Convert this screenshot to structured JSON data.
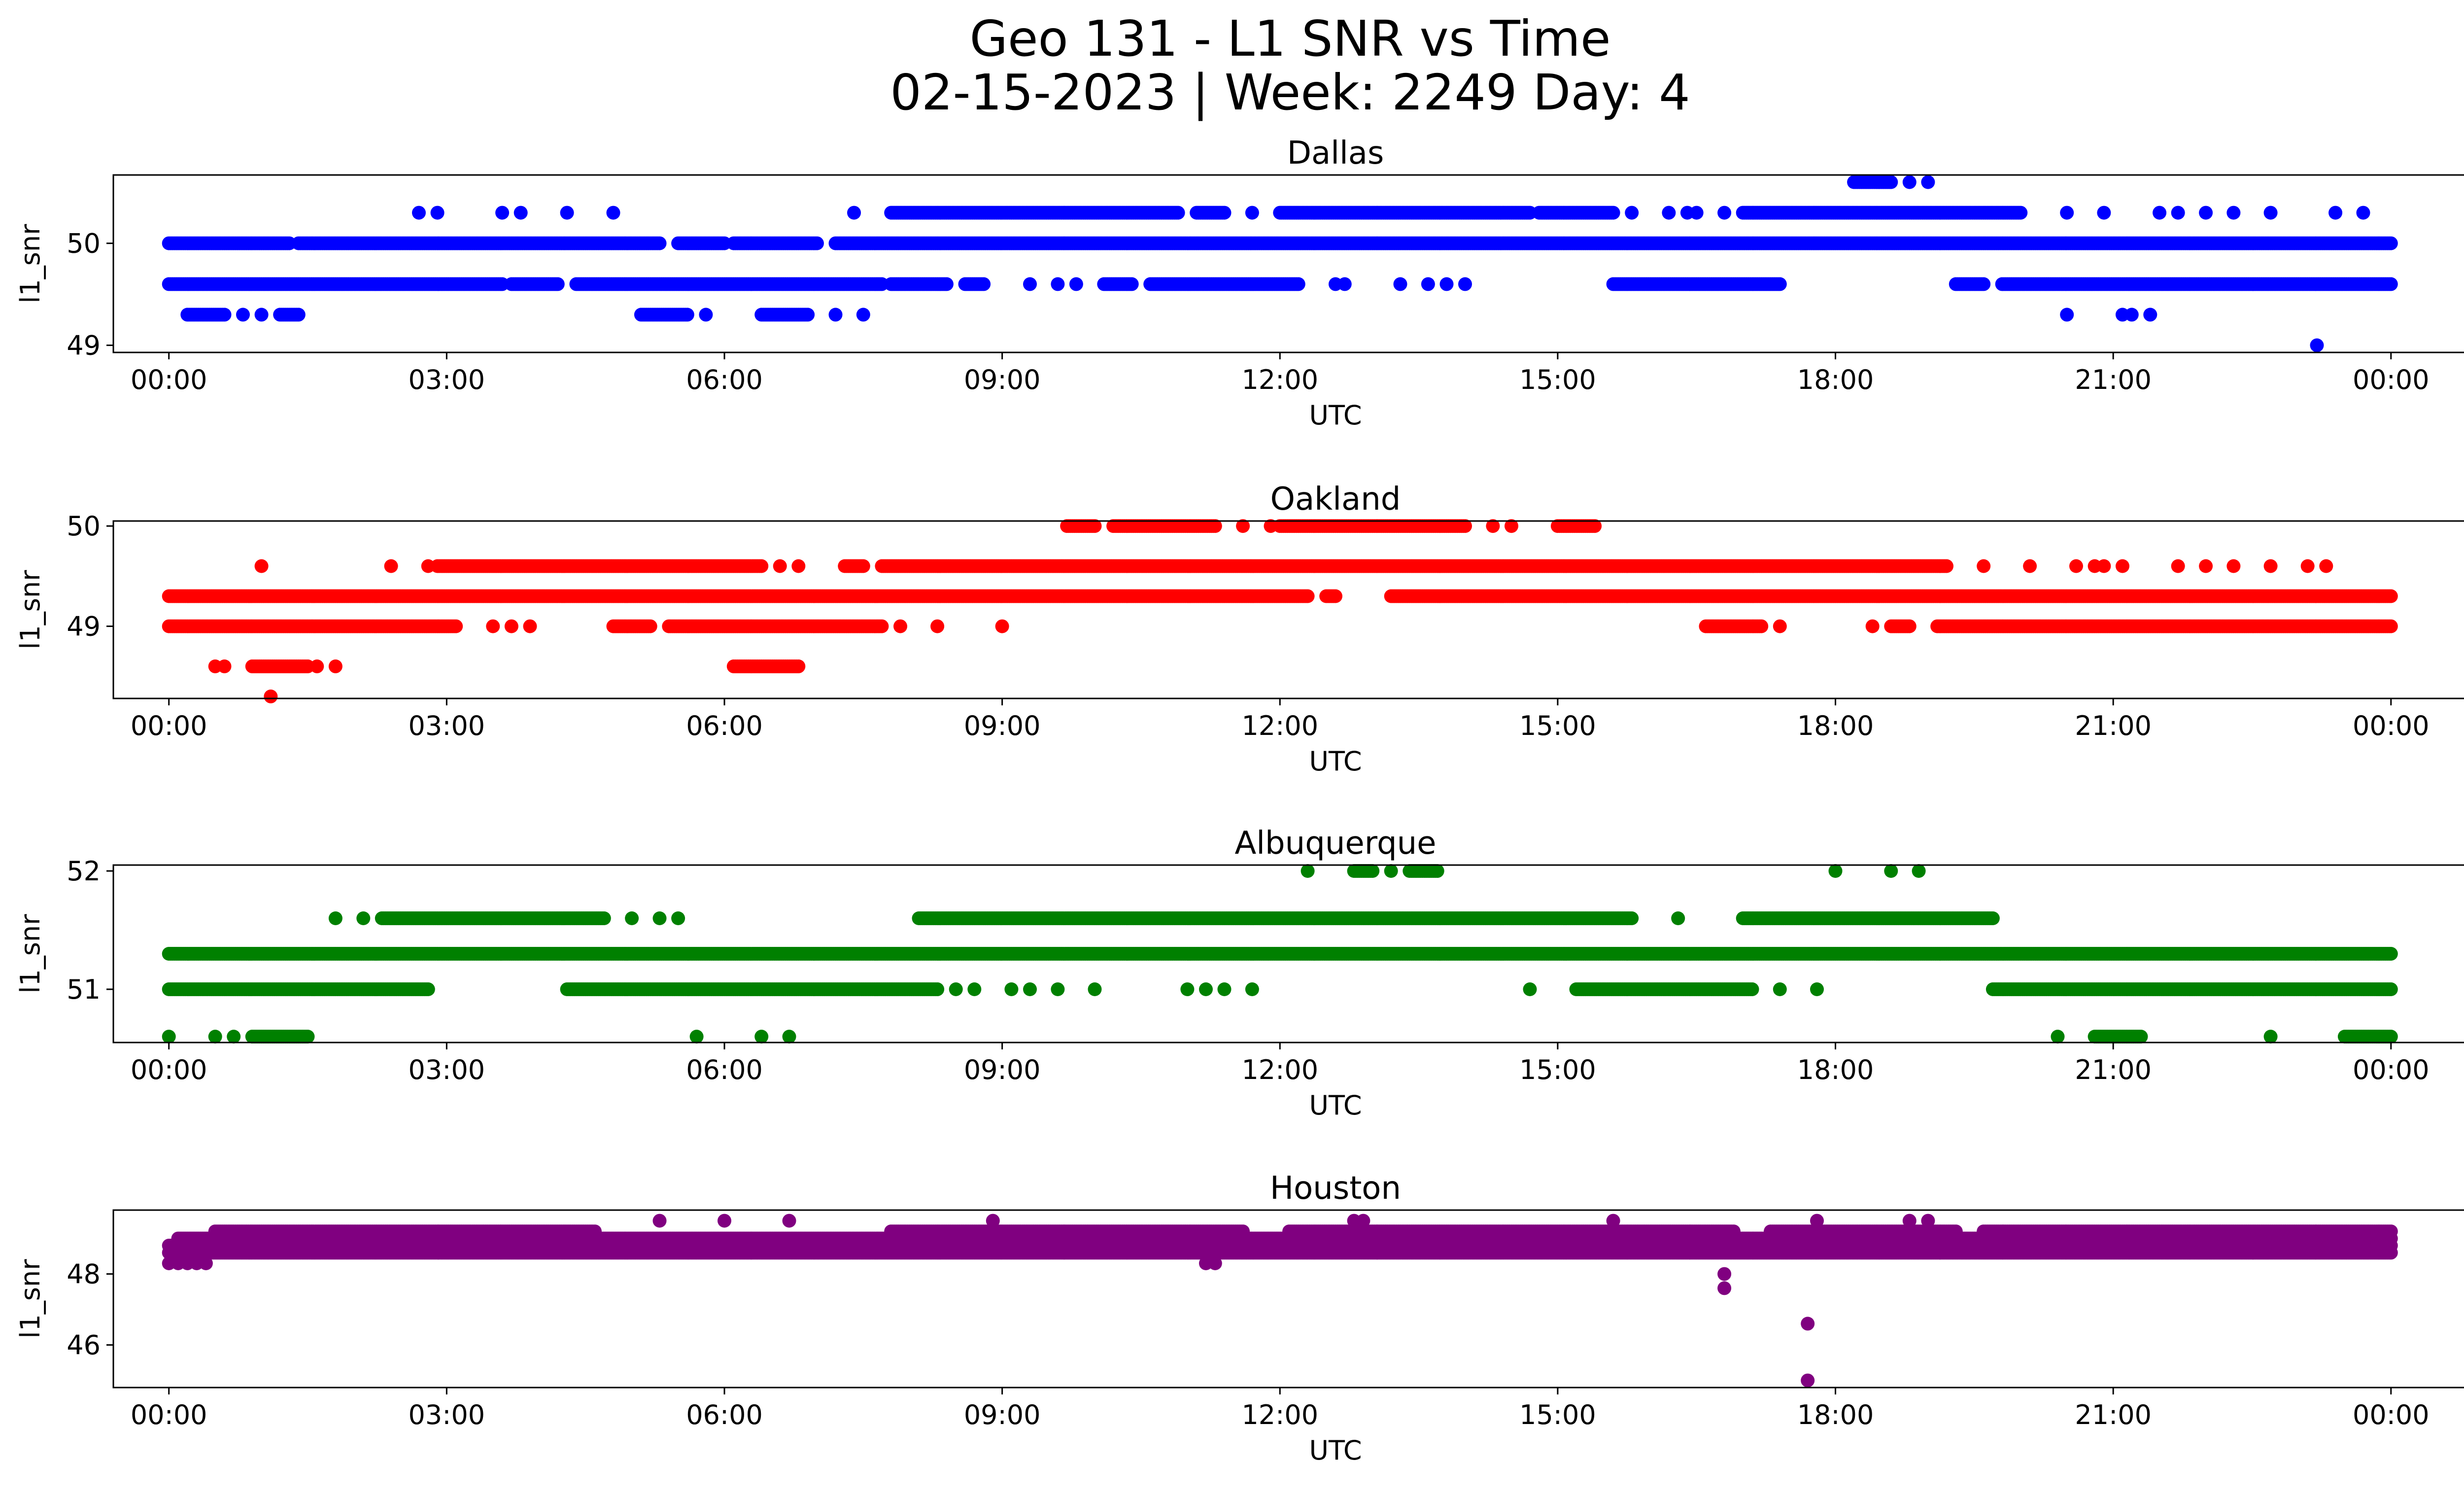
{
  "figure": {
    "title_line1": "Geo 131 - L1 SNR vs Time",
    "title_line2": "02-15-2023 | Week: 2249 Day: 4"
  },
  "chart_data": [
    {
      "type": "scatter",
      "title": "Dallas",
      "xlabel": "UTC",
      "ylabel": "l1_snr",
      "color": "#0000ff",
      "x_ticks": [
        "00:00",
        "03:00",
        "06:00",
        "09:00",
        "12:00",
        "15:00",
        "18:00",
        "21:00",
        "00:00"
      ],
      "x_range_hours": [
        -0.6,
        25.8
      ],
      "y_ticks": [
        49,
        50
      ],
      "ylim": [
        48.93,
        50.67
      ],
      "levels": [
        {
          "y": 50.0,
          "ranges": [
            [
              0.0,
              1.3
            ],
            [
              1.4,
              5.3
            ],
            [
              5.5,
              6.0
            ],
            [
              6.1,
              7.0
            ],
            [
              7.2,
              24.0
            ]
          ]
        },
        {
          "y": 49.6,
          "ranges": [
            [
              0.0,
              3.6
            ],
            [
              3.7,
              4.2
            ],
            [
              4.4,
              7.7
            ],
            [
              7.8,
              8.4
            ],
            [
              8.6,
              8.8
            ],
            [
              10.1,
              10.4
            ],
            [
              10.6,
              12.2
            ],
            [
              15.6,
              17.4
            ],
            [
              19.3,
              19.6
            ],
            [
              19.8,
              24.0
            ]
          ],
          "points": [
            9.3,
            9.6,
            9.8,
            12.6,
            12.7,
            13.3,
            13.6,
            13.8,
            14.0
          ]
        },
        {
          "y": 50.3,
          "ranges": [
            [
              7.8,
              10.9
            ],
            [
              11.1,
              11.4
            ],
            [
              12.0,
              14.7
            ],
            [
              14.8,
              15.6
            ],
            [
              17.0,
              20.0
            ]
          ],
          "points": [
            2.7,
            2.9,
            3.6,
            3.8,
            4.3,
            4.8,
            7.4,
            11.7,
            15.8,
            16.2,
            16.4,
            16.5,
            16.8,
            20.5,
            20.9,
            21.5,
            21.7,
            22.0,
            22.3,
            22.7,
            23.4,
            23.7
          ]
        },
        {
          "y": 49.3,
          "ranges": [
            [
              0.2,
              0.6
            ],
            [
              1.2,
              1.4
            ],
            [
              5.1,
              5.6
            ],
            [
              6.4,
              6.9
            ]
          ],
          "points": [
            0.8,
            1.0,
            5.8,
            7.2,
            7.5,
            20.5,
            21.1,
            21.2,
            21.4
          ]
        },
        {
          "y": 50.6,
          "ranges": [
            [
              18.2,
              18.6
            ]
          ],
          "points": [
            18.8,
            19.0
          ]
        },
        {
          "y": 49.0,
          "points": [
            23.2
          ]
        }
      ]
    },
    {
      "type": "scatter",
      "title": "Oakland",
      "xlabel": "UTC",
      "ylabel": "l1_snr",
      "color": "#ff0000",
      "x_ticks": [
        "00:00",
        "03:00",
        "06:00",
        "09:00",
        "12:00",
        "15:00",
        "18:00",
        "21:00",
        "00:00"
      ],
      "x_range_hours": [
        -0.6,
        25.8
      ],
      "y_ticks": [
        49,
        50
      ],
      "ylim": [
        48.28,
        50.05
      ],
      "levels": [
        {
          "y": 49.3,
          "ranges": [
            [
              0.0,
              12.3
            ],
            [
              12.5,
              12.6
            ],
            [
              13.2,
              24.0
            ]
          ]
        },
        {
          "y": 49.0,
          "ranges": [
            [
              0.0,
              3.1
            ],
            [
              4.8,
              5.2
            ],
            [
              5.4,
              7.7
            ],
            [
              16.6,
              17.2
            ],
            [
              18.6,
              18.8
            ],
            [
              19.1,
              24.0
            ]
          ],
          "points": [
            3.5,
            3.7,
            3.9,
            7.9,
            8.3,
            9.0,
            17.4,
            18.4
          ]
        },
        {
          "y": 49.6,
          "ranges": [
            [
              2.9,
              6.4
            ],
            [
              7.3,
              7.5
            ],
            [
              7.7,
              19.2
            ]
          ],
          "points": [
            1.0,
            2.4,
            2.8,
            6.6,
            6.8,
            19.6,
            20.1,
            20.6,
            20.8,
            20.9,
            21.1,
            21.7,
            22.0,
            22.3,
            22.7,
            23.1,
            23.3
          ]
        },
        {
          "y": 48.6,
          "ranges": [
            [
              0.9,
              1.5
            ],
            [
              6.1,
              6.8
            ]
          ],
          "points": [
            0.5,
            0.6,
            1.6,
            1.8
          ]
        },
        {
          "y": 50.0,
          "ranges": [
            [
              9.7,
              10.0
            ],
            [
              10.2,
              11.3
            ],
            [
              12.0,
              14.0
            ],
            [
              15.0,
              15.4
            ]
          ],
          "points": [
            11.6,
            11.9,
            14.3,
            14.5
          ]
        },
        {
          "y": 48.3,
          "points": [
            1.1
          ]
        }
      ]
    },
    {
      "type": "scatter",
      "title": "Albuquerque",
      "xlabel": "UTC",
      "ylabel": "l1_snr",
      "color": "#008000",
      "x_ticks": [
        "00:00",
        "03:00",
        "06:00",
        "09:00",
        "12:00",
        "15:00",
        "18:00",
        "21:00",
        "00:00"
      ],
      "x_range_hours": [
        -0.6,
        25.8
      ],
      "y_ticks": [
        51,
        52
      ],
      "ylim": [
        50.55,
        52.05
      ],
      "levels": [
        {
          "y": 51.3,
          "ranges": [
            [
              0.0,
              24.0
            ]
          ]
        },
        {
          "y": 51.0,
          "ranges": [
            [
              0.0,
              2.8
            ],
            [
              4.3,
              8.3
            ],
            [
              15.2,
              17.1
            ],
            [
              19.7,
              24.0
            ]
          ],
          "points": [
            8.5,
            8.7,
            9.1,
            9.3,
            9.6,
            10.0,
            11.0,
            11.2,
            11.4,
            11.7,
            14.7,
            17.4,
            17.8
          ]
        },
        {
          "y": 51.6,
          "ranges": [
            [
              2.3,
              4.7
            ],
            [
              8.1,
              15.8
            ],
            [
              17.0,
              19.7
            ]
          ],
          "points": [
            1.8,
            2.1,
            5.0,
            5.3,
            5.5,
            16.3
          ]
        },
        {
          "y": 50.6,
          "ranges": [
            [
              0.9,
              1.5
            ],
            [
              20.8,
              21.3
            ],
            [
              23.5,
              24.0
            ]
          ],
          "points": [
            0.0,
            0.5,
            0.7,
            5.7,
            6.4,
            6.7,
            20.4,
            22.7
          ]
        },
        {
          "y": 52.0,
          "ranges": [
            [
              12.8,
              13.0
            ],
            [
              13.4,
              13.7
            ]
          ],
          "points": [
            12.3,
            13.2,
            18.0,
            18.6,
            18.9
          ]
        }
      ]
    },
    {
      "type": "scatter",
      "title": "Houston",
      "xlabel": "UTC",
      "ylabel": "l1_snr",
      "color": "#800080",
      "x_ticks": [
        "00:00",
        "03:00",
        "06:00",
        "09:00",
        "12:00",
        "15:00",
        "18:00",
        "21:00",
        "00:00"
      ],
      "x_range_hours": [
        -0.6,
        25.8
      ],
      "y_ticks": [
        46,
        48
      ],
      "ylim": [
        44.8,
        49.8
      ],
      "levels": [
        {
          "y": 48.6,
          "ranges": [
            [
              0.0,
              24.0
            ]
          ]
        },
        {
          "y": 48.8,
          "ranges": [
            [
              0.0,
              24.0
            ]
          ]
        },
        {
          "y": 49.0,
          "ranges": [
            [
              0.1,
              24.0
            ]
          ]
        },
        {
          "y": 49.2,
          "ranges": [
            [
              0.5,
              4.6
            ],
            [
              7.8,
              11.6
            ],
            [
              12.1,
              16.9
            ],
            [
              17.3,
              19.3
            ],
            [
              19.6,
              24.0
            ]
          ]
        },
        {
          "y": 48.3,
          "points": [
            0.0,
            0.1,
            0.2,
            0.3,
            0.4,
            11.2,
            11.3
          ]
        },
        {
          "y": 49.5,
          "points": [
            5.3,
            6.0,
            6.7,
            8.9,
            12.8,
            12.9,
            15.6,
            17.8,
            18.8,
            19.0
          ]
        },
        {
          "y": 48.0,
          "points": [
            16.8
          ]
        },
        {
          "y": 47.6,
          "points": [
            16.8
          ]
        },
        {
          "y": 46.6,
          "points": [
            17.7
          ]
        },
        {
          "y": 45.0,
          "points": [
            17.7
          ]
        }
      ]
    }
  ]
}
